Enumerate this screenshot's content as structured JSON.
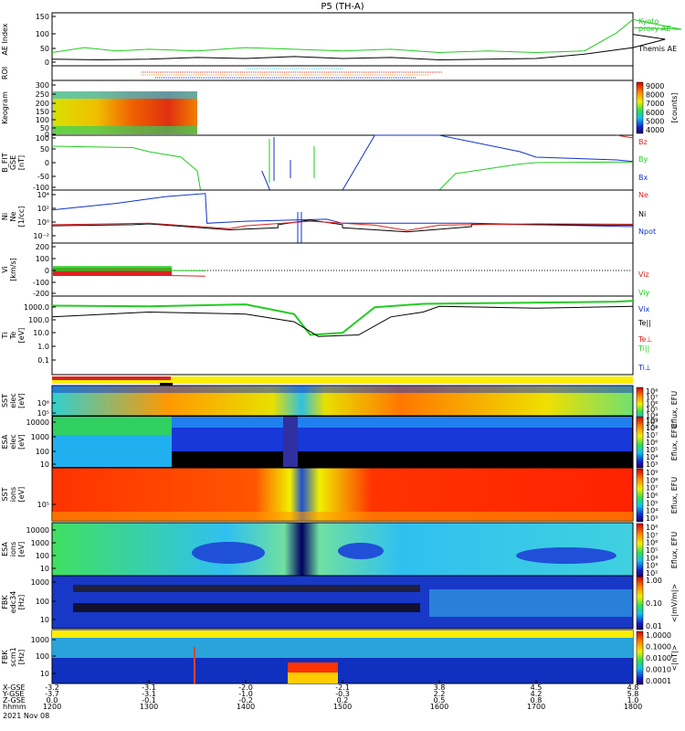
{
  "title": "P5 (TH-A)",
  "colors": {
    "green": "#22cc22",
    "red": "#dd2222",
    "blue": "#1133cc",
    "black": "#000000",
    "yellow": "#ffee00",
    "cyan": "#33ccee"
  },
  "panels": [
    {
      "id": "ae",
      "ylabel": [
        "AE Index"
      ],
      "ticks": [
        "150",
        "100",
        "50",
        "0"
      ],
      "legend": [
        "Kyoto",
        "proxy AE",
        "Themis AE"
      ]
    },
    {
      "id": "roi",
      "ylabel": [
        "ROI"
      ],
      "ticks": [],
      "legend": []
    },
    {
      "id": "keogram",
      "ylabel": [
        "Keogram"
      ],
      "ticks": [
        "300",
        "250",
        "200",
        "150",
        "100",
        "50",
        "0"
      ],
      "legend": []
    },
    {
      "id": "bfit",
      "ylabel": [
        "B_FIT",
        "GSE",
        "[nT]"
      ],
      "ticks": [
        "100",
        "50",
        "0",
        "-50",
        "-100"
      ],
      "legend": [
        "Bz",
        "By",
        "Bx"
      ]
    },
    {
      "id": "density",
      "ylabel": [
        "Ni",
        "Ne",
        "[1/cc]"
      ],
      "ticks": [
        "10⁴",
        "10²",
        "10⁰",
        "10⁻²"
      ],
      "legend": [
        "Ne",
        "Ni",
        "Npot"
      ]
    },
    {
      "id": "velocity",
      "ylabel": [
        "Vi",
        "[km/s]"
      ],
      "ticks": [
        "200",
        "100",
        "0",
        "-100",
        "-200"
      ],
      "legend": [
        "Viz",
        "Viy",
        "Vix"
      ]
    },
    {
      "id": "temp",
      "ylabel": [
        "Ti",
        "Te",
        "[eV]"
      ],
      "ticks": [
        "1000.0",
        "100.0",
        "10.0",
        "1.0",
        "0.1"
      ],
      "legend": [
        "Te||",
        "Te⊥",
        "Ti||",
        "Ti⊥"
      ]
    },
    {
      "id": "sst_e",
      "ylabel": [
        "SST",
        "elec",
        "[eV]"
      ],
      "ticks": [
        "10⁶",
        "10⁵"
      ],
      "legend": []
    },
    {
      "id": "esa_e",
      "ylabel": [
        "ESA",
        "elec",
        "[eV]"
      ],
      "ticks": [
        "10000",
        "1000",
        "100",
        "10"
      ],
      "legend": []
    },
    {
      "id": "sst_i",
      "ylabel": [
        "SST",
        "ions",
        "[eV]"
      ],
      "ticks": [
        "10⁵"
      ],
      "legend": []
    },
    {
      "id": "esa_i",
      "ylabel": [
        "ESA",
        "ions",
        "[eV]"
      ],
      "ticks": [
        "10000",
        "1000",
        "100",
        "10"
      ],
      "legend": []
    },
    {
      "id": "fbk_e",
      "ylabel": [
        "FBK",
        "edc34",
        "[Hz]"
      ],
      "ticks": [
        "1000",
        "100",
        "10"
      ],
      "legend": []
    },
    {
      "id": "fbk_b",
      "ylabel": [
        "FBK",
        "scm1",
        "[Hz]"
      ],
      "ticks": [
        "1000",
        "100",
        "10"
      ],
      "legend": []
    }
  ],
  "colorbars": [
    {
      "id": "keogram_cb",
      "title": "[counts]",
      "ticks": [
        "9000",
        "8000",
        "7000",
        "6000",
        "5000",
        "4000"
      ]
    },
    {
      "id": "sst_e_cb",
      "title": "Eflux, EFU",
      "ticks": [
        "10⁸",
        "10⁷",
        "10⁶",
        "10⁵",
        "10⁴",
        "10³",
        "10²"
      ]
    },
    {
      "id": "esa_e_cb",
      "title": "Eflux, EFU",
      "ticks": [
        "10⁹",
        "10⁸",
        "10⁷",
        "10⁶",
        "10⁵",
        "10⁴",
        "10³"
      ]
    },
    {
      "id": "sst_i_cb",
      "title": "Eflux, EFU",
      "ticks": [
        "10⁹",
        "10⁸",
        "10⁷",
        "10⁶",
        "10⁵",
        "10⁴",
        "10³"
      ]
    },
    {
      "id": "esa_i_cb",
      "title": "Eflux, EFU",
      "ticks": [
        "10⁸",
        "10⁷",
        "10⁶",
        "10⁵",
        "10⁴",
        "10³",
        "10²"
      ]
    },
    {
      "id": "fbk_e_cb",
      "title": "<|mV/m|>",
      "ticks": [
        "1.00",
        "0.10",
        "0.01"
      ]
    },
    {
      "id": "fbk_b_cb",
      "title": "<|nT|>",
      "ticks": [
        "1.0000",
        "0.1000",
        "0.0100",
        "0.0010",
        "0.0001"
      ]
    }
  ],
  "chart_data": {
    "type": "line",
    "title": "P5 (TH-A)",
    "x_axis": {
      "row_labels": [
        "X-GSE",
        "Y-GSE",
        "Z-GSE",
        "hhmm",
        "2021 Nov 08"
      ],
      "ticks": [
        {
          "time": "1200",
          "x": "-3.2",
          "y": "-3.7",
          "z": "0.0"
        },
        {
          "time": "1300",
          "x": "-3.1",
          "y": "-3.1",
          "z": "-0.1"
        },
        {
          "time": "1400",
          "x": "-2.0",
          "y": "-1.0",
          "z": "-0.2"
        },
        {
          "time": "1500",
          "x": "-2.1",
          "y": "-0.3",
          "z": "0.2"
        },
        {
          "time": "1600",
          "x": "3.8",
          "y": "2.2",
          "z": "0.5"
        },
        {
          "time": "1700",
          "x": "4.5",
          "y": "4.2",
          "z": "0.8"
        },
        {
          "time": "1800",
          "x": "4.8",
          "y": "5.8",
          "z": "1.0"
        }
      ]
    },
    "series": [
      {
        "panel": "ae",
        "name": "Kyoto proxy AE",
        "color": "#22cc22",
        "points": [
          [
            1200,
            40
          ],
          [
            1220,
            55
          ],
          [
            1240,
            45
          ],
          [
            1300,
            50
          ],
          [
            1330,
            45
          ],
          [
            1400,
            55
          ],
          [
            1430,
            50
          ],
          [
            1500,
            45
          ],
          [
            1530,
            50
          ],
          [
            1600,
            40
          ],
          [
            1630,
            45
          ],
          [
            1700,
            40
          ],
          [
            1730,
            45
          ],
          [
            1750,
            100
          ],
          [
            1760,
            140
          ],
          [
            1770,
            130
          ],
          [
            1780,
            120
          ],
          [
            1790,
            110
          ],
          [
            1800,
            115
          ]
        ]
      },
      {
        "panel": "ae",
        "name": "Themis AE",
        "color": "#000000",
        "points": [
          [
            1200,
            20
          ],
          [
            1230,
            18
          ],
          [
            1300,
            20
          ],
          [
            1330,
            25
          ],
          [
            1400,
            22
          ],
          [
            1430,
            28
          ],
          [
            1500,
            22
          ],
          [
            1530,
            25
          ],
          [
            1600,
            18
          ],
          [
            1630,
            20
          ],
          [
            1700,
            22
          ],
          [
            1730,
            35
          ],
          [
            1760,
            55
          ],
          [
            1780,
            80
          ],
          [
            1800,
            95
          ]
        ]
      },
      {
        "panel": "bfit",
        "name": "By",
        "color": "#22cc22",
        "points": [
          [
            1200,
            60
          ],
          [
            1250,
            55
          ],
          [
            1300,
            40
          ],
          [
            1320,
            20
          ],
          [
            1330,
            -30
          ],
          [
            1332,
            -100
          ],
          [
            1600,
            -100
          ],
          [
            1610,
            -40
          ],
          [
            1650,
            -5
          ],
          [
            1700,
            0
          ],
          [
            1750,
            2
          ],
          [
            1800,
            2
          ]
        ]
      },
      {
        "panel": "bfit",
        "name": "Bx",
        "color": "#1133cc",
        "points": [
          [
            1370,
            -30
          ],
          [
            1375,
            -100
          ],
          [
            1500,
            -100
          ],
          [
            1510,
            0
          ],
          [
            1520,
            100
          ],
          [
            1600,
            100
          ],
          [
            1650,
            40
          ],
          [
            1700,
            20
          ],
          [
            1750,
            10
          ],
          [
            1800,
            4
          ]
        ]
      },
      {
        "panel": "bfit",
        "name": "Bz",
        "color": "#dd2222",
        "points": [
          [
            1750,
            100
          ],
          [
            1800,
            90
          ]
        ]
      },
      {
        "panel": "density",
        "name": "Npot",
        "color": "#1133cc",
        "points": [
          [
            1200,
            100
          ],
          [
            1240,
            1000
          ],
          [
            1270,
            10000
          ],
          [
            1295,
            30000
          ],
          [
            1296,
            1
          ],
          [
            1400,
            2
          ],
          [
            1450,
            4
          ],
          [
            1500,
            1
          ],
          [
            1560,
            1
          ],
          [
            1620,
            1
          ],
          [
            1700,
            0.6
          ],
          [
            1800,
            0.3
          ]
        ]
      },
      {
        "panel": "density",
        "name": "Ni",
        "color": "#000000",
        "points": [
          [
            1200,
            0.4
          ],
          [
            1250,
            0.6
          ],
          [
            1300,
            0.8
          ],
          [
            1350,
            0.1
          ],
          [
            1380,
            0.2
          ],
          [
            1420,
            0.6
          ],
          [
            1440,
            3
          ],
          [
            1460,
            0.6
          ],
          [
            1500,
            0.2
          ],
          [
            1540,
            0.05
          ],
          [
            1580,
            0.3
          ],
          [
            1620,
            0.7
          ],
          [
            1700,
            0.6
          ],
          [
            1800,
            0.5
          ]
        ]
      },
      {
        "panel": "density",
        "name": "Ne",
        "color": "#dd2222",
        "points": [
          [
            1200,
            0.6
          ],
          [
            1300,
            1
          ],
          [
            1350,
            0.15
          ],
          [
            1400,
            0.4
          ],
          [
            1440,
            2
          ],
          [
            1480,
            0.5
          ],
          [
            1540,
            0.08
          ],
          [
            1600,
            0.5
          ],
          [
            1700,
            0.8
          ],
          [
            1800,
            0.7
          ]
        ]
      },
      {
        "panel": "velocity",
        "name": "Viy",
        "color": "#22cc22",
        "points": [
          [
            1200,
            -10
          ],
          [
            1250,
            -5
          ],
          [
            1295,
            -10
          ]
        ]
      },
      {
        "panel": "velocity",
        "name": "Viz",
        "color": "#dd2222",
        "points": [
          [
            1200,
            -30
          ],
          [
            1250,
            -40
          ],
          [
            1295,
            -50
          ]
        ]
      },
      {
        "panel": "temp",
        "name": "Ti||",
        "color": "#22cc22",
        "points": [
          [
            1200,
            1000
          ],
          [
            1300,
            900
          ],
          [
            1400,
            1200
          ],
          [
            1430,
            300
          ],
          [
            1440,
            15
          ],
          [
            1460,
            20
          ],
          [
            1480,
            800
          ],
          [
            1550,
            1300
          ],
          [
            1650,
            1500
          ],
          [
            1750,
            1800
          ],
          [
            1800,
            2000
          ]
        ]
      },
      {
        "panel": "temp",
        "name": "Te||",
        "color": "#000000",
        "points": [
          [
            1200,
            200
          ],
          [
            1300,
            400
          ],
          [
            1400,
            300
          ],
          [
            1430,
            100
          ],
          [
            1445,
            12
          ],
          [
            1470,
            15
          ],
          [
            1490,
            200
          ],
          [
            1550,
            400
          ],
          [
            1600,
            900
          ],
          [
            1700,
            700
          ],
          [
            1800,
            900
          ]
        ]
      }
    ]
  }
}
